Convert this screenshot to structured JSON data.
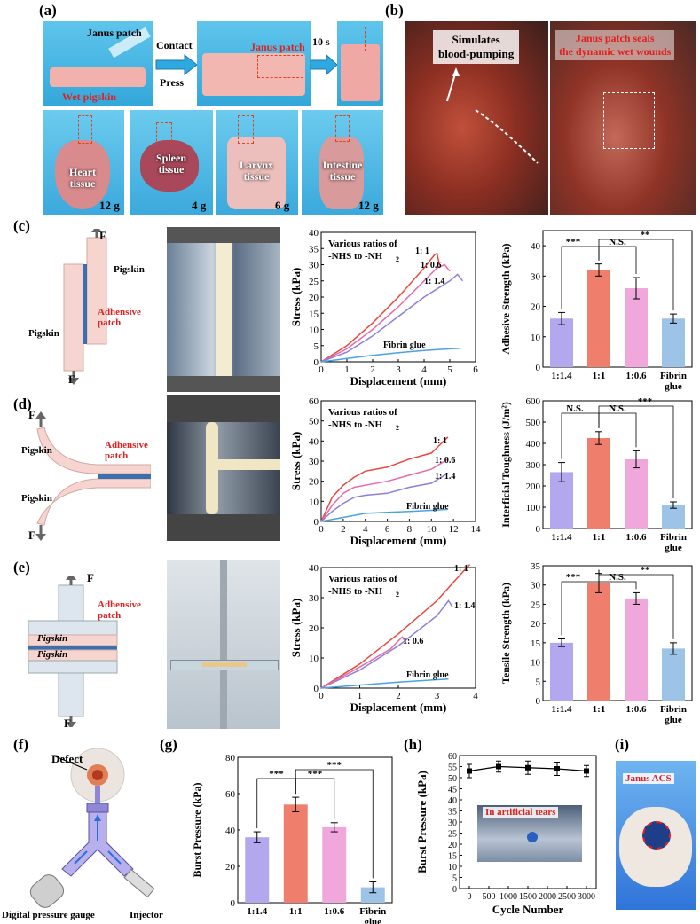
{
  "panel_labels": {
    "a": "(a)",
    "b": "(b)",
    "c": "(c)",
    "d": "(d)",
    "e": "(e)",
    "f": "(f)",
    "g": "(g)",
    "h": "(h)",
    "i": "(i)"
  },
  "a": {
    "janus_patch": "Janus patch",
    "wet_pigskin": "Wet pigskin",
    "contact": "Contact",
    "press": "Press",
    "janus_patch2": "Janus patch",
    "time": "10 s",
    "tissues": [
      {
        "name": "Heart\ntissue",
        "weight": "12 g"
      },
      {
        "name": "Spleen\ntissue",
        "weight": "4 g"
      },
      {
        "name": "Larynx\ntissue",
        "weight": "6 g"
      },
      {
        "name": "Intestine\ntissue",
        "weight": "12 g"
      }
    ]
  },
  "b": {
    "left_text": "Simulates\nblood-pumping",
    "right_text": "Janus patch seals\nthe dynamic wet wounds"
  },
  "c_schem": {
    "f": "F",
    "pigskin": "Pigskin",
    "pigskin2": "Pigskin",
    "adhesive": "Adhensive\npatch"
  },
  "d_schem": {
    "f": "F",
    "pigskin": "Pigskin",
    "pigskin2": "Pigskin",
    "adhesive": "Adhensive\npatch"
  },
  "e_schem": {
    "f": "F",
    "pigskin": "Pigskin",
    "pigskin2": "Pigskin",
    "adhesive": "Adhensive\npatch"
  },
  "f_schem": {
    "defect": "Defect",
    "gauge": "Digital pressure gauge",
    "injector": "Injector"
  },
  "i": {
    "label": "Janus ACS"
  },
  "h": {
    "inset": "In artificial tears"
  },
  "chart_data": [
    {
      "id": "c_curve",
      "type": "line",
      "title": "Various ratios of -NHS to -NH2",
      "xlabel": "Displacement (mm)",
      "ylabel": "Stress (kPa)",
      "xlim": [
        0,
        6
      ],
      "ylim": [
        0,
        40
      ],
      "xticks": [
        0,
        1,
        2,
        3,
        4,
        5,
        6
      ],
      "yticks": [
        0,
        5,
        10,
        15,
        20,
        25,
        30,
        35,
        40
      ],
      "series": [
        {
          "name": "1: 1",
          "color": "#e8473c",
          "x": [
            0,
            1,
            2,
            3,
            4,
            4.4,
            4.5,
            4.6
          ],
          "y": [
            0,
            5,
            12,
            20,
            29,
            33,
            33.5,
            30
          ]
        },
        {
          "name": "1: 0.6",
          "color": "#e86aa8",
          "x": [
            0,
            1,
            2,
            3,
            4,
            4.5,
            4.8,
            5.0
          ],
          "y": [
            0,
            4,
            10,
            17,
            25,
            29,
            30,
            28
          ]
        },
        {
          "name": "1: 1.4",
          "color": "#8d7fd8",
          "x": [
            0,
            1,
            2,
            3,
            4,
            5,
            5.3,
            5.5
          ],
          "y": [
            0,
            3,
            8,
            14,
            20,
            25,
            27,
            25
          ]
        },
        {
          "name": "Fibrin glue",
          "color": "#4aa3e0",
          "x": [
            0,
            1,
            2,
            3,
            4,
            5,
            5.4
          ],
          "y": [
            0,
            1,
            2,
            2.8,
            3.5,
            4,
            4.2
          ]
        }
      ],
      "labels": [
        "Various ratios of",
        "-NHS to -NH",
        "2",
        "1: 1",
        "1: 0.6",
        "1: 1.4",
        "Fibrin glue"
      ]
    },
    {
      "id": "c_bar",
      "type": "bar",
      "ylabel": "Adhesive Strength (kPa)",
      "ylim": [
        0,
        45
      ],
      "yticks": [
        0,
        10,
        20,
        30,
        40
      ],
      "categories": [
        "1:1.4",
        "1:1",
        "1:0.6",
        "Fibrin\nglue"
      ],
      "values": [
        16,
        32,
        26,
        16
      ],
      "errors": [
        2,
        2,
        3.5,
        1.5
      ],
      "colors": [
        "#b3a8ee",
        "#ef7f6c",
        "#f0a8dc",
        "#9dc4e6"
      ],
      "sig": [
        "***",
        "N.S.",
        "**"
      ]
    },
    {
      "id": "d_curve",
      "type": "line",
      "title": "Various ratios of -NHS to -NH2",
      "xlabel": "Displacement (mm)",
      "ylabel": "Stress (kPa)",
      "xlim": [
        0,
        14
      ],
      "ylim": [
        0,
        60
      ],
      "xticks": [
        0,
        2,
        4,
        6,
        8,
        10,
        12,
        14
      ],
      "yticks": [
        0,
        10,
        20,
        30,
        40,
        50,
        60
      ],
      "series": [
        {
          "name": "1: 1",
          "color": "#e8473c",
          "x": [
            0,
            1,
            2,
            3,
            4,
            6,
            8,
            10,
            11.5
          ],
          "y": [
            0,
            12,
            18,
            22,
            25,
            27,
            31,
            34,
            42
          ]
        },
        {
          "name": "1: 0.6",
          "color": "#e86aa8",
          "x": [
            0,
            1,
            2,
            3,
            4,
            6,
            8,
            10,
            11.5
          ],
          "y": [
            0,
            8,
            14,
            17,
            18,
            20,
            23,
            26,
            31
          ]
        },
        {
          "name": "1: 1.4",
          "color": "#8d7fd8",
          "x": [
            0,
            1,
            2,
            3,
            4,
            6,
            8,
            10,
            11.5
          ],
          "y": [
            0,
            5,
            9,
            12,
            13,
            14,
            17,
            19,
            24
          ]
        },
        {
          "name": "Fibrin glue",
          "color": "#4aa3e0",
          "x": [
            0,
            2,
            4,
            6,
            8,
            10,
            11.5
          ],
          "y": [
            0,
            2,
            4,
            4.5,
            5,
            5.5,
            6
          ]
        }
      ],
      "labels": [
        "Various ratios of",
        "-NHS to -NH",
        "2",
        "1: 1",
        "1: 0.6",
        "1: 1.4",
        "Fibrin glue"
      ]
    },
    {
      "id": "d_bar",
      "type": "bar",
      "ylabel": "Interficial Toughness (J/m²)",
      "ylim": [
        0,
        600
      ],
      "yticks": [
        0,
        100,
        200,
        300,
        400,
        500,
        600
      ],
      "categories": [
        "1:1.4",
        "1:1",
        "1:0.6",
        "Fibrin\nglue"
      ],
      "values": [
        265,
        425,
        325,
        110
      ],
      "errors": [
        45,
        30,
        40,
        15
      ],
      "colors": [
        "#b3a8ee",
        "#ef7f6c",
        "#f0a8dc",
        "#9dc4e6"
      ],
      "sig": [
        "N.S.",
        "N.S.",
        "***"
      ]
    },
    {
      "id": "e_curve",
      "type": "line",
      "title": "Various ratios of -NHS to -NH2",
      "xlabel": "Displacement (mm)",
      "ylabel": "Stress (kPa)",
      "xlim": [
        0,
        4
      ],
      "ylim": [
        0,
        40
      ],
      "xticks": [
        0,
        1,
        2,
        3,
        4
      ],
      "yticks": [
        0,
        10,
        20,
        30,
        40
      ],
      "series": [
        {
          "name": "1: 1",
          "color": "#e8473c",
          "x": [
            0,
            1,
            2,
            3,
            3.7,
            3.85
          ],
          "y": [
            0,
            8,
            18,
            29,
            39,
            41
          ]
        },
        {
          "name": "1: 1.4",
          "color": "#8d7fd8",
          "x": [
            0,
            1,
            2,
            3,
            3.3,
            3.4
          ],
          "y": [
            0,
            6,
            14,
            24,
            29,
            27
          ]
        },
        {
          "name": "1: 0.6",
          "color": "#e86aa8",
          "x": [
            0,
            1,
            1.8,
            2.1,
            2.2
          ],
          "y": [
            0,
            7,
            13,
            17,
            15
          ]
        },
        {
          "name": "Fibrin glue",
          "color": "#4aa3e0",
          "x": [
            0,
            1,
            2,
            3,
            3.3
          ],
          "y": [
            0,
            1,
            2,
            2.8,
            3
          ]
        }
      ],
      "labels": [
        "Various ratios of",
        "-NHS to -NH",
        "2",
        "1: 1",
        "1: 1.4",
        "1: 0.6",
        "Fibrin glue"
      ]
    },
    {
      "id": "e_bar",
      "type": "bar",
      "ylabel": "Tensile Strength (kPa)",
      "ylim": [
        0,
        35
      ],
      "yticks": [
        0,
        5,
        10,
        15,
        20,
        25,
        30,
        35
      ],
      "categories": [
        "1:1.4",
        "1:1",
        "1:0.6",
        "Fibrin\nglue"
      ],
      "values": [
        15,
        30.5,
        26.5,
        13.5
      ],
      "errors": [
        1,
        2.5,
        1.5,
        1.5
      ],
      "colors": [
        "#b3a8ee",
        "#ef7f6c",
        "#f0a8dc",
        "#9dc4e6"
      ],
      "sig": [
        "***",
        "N.S.",
        "**"
      ]
    },
    {
      "id": "g_bar",
      "type": "bar",
      "ylabel": "Burst Pressure (kPa)",
      "ylim": [
        0,
        80
      ],
      "yticks": [
        0,
        20,
        40,
        60,
        80
      ],
      "categories": [
        "1:1.4",
        "1:1",
        "1:0.6",
        "Fibrin\nglue"
      ],
      "values": [
        36,
        54,
        41.5,
        8.5
      ],
      "errors": [
        3,
        4,
        2.5,
        3
      ],
      "colors": [
        "#b3a8ee",
        "#ef7f6c",
        "#f0a8dc",
        "#9dc4e6"
      ],
      "sig": [
        "***",
        "***",
        "***"
      ]
    },
    {
      "id": "h_line",
      "type": "line",
      "xlabel": "Cycle Number",
      "ylabel": "Burst Pressure (kPa)",
      "xlim": [
        -250,
        3250
      ],
      "ylim": [
        0,
        60
      ],
      "xticks": [
        0,
        500,
        1000,
        1500,
        2000,
        2500,
        3000
      ],
      "yticks": [
        0,
        5,
        10,
        15,
        20,
        25,
        30,
        35,
        40,
        45,
        50,
        55,
        60
      ],
      "series": [
        {
          "name": "burst",
          "color": "#000",
          "x": [
            0,
            750,
            1500,
            2250,
            3000
          ],
          "y": [
            53,
            55,
            54.5,
            54,
            53
          ],
          "errors": [
            3,
            2.5,
            3,
            3,
            2.5
          ]
        }
      ]
    }
  ]
}
